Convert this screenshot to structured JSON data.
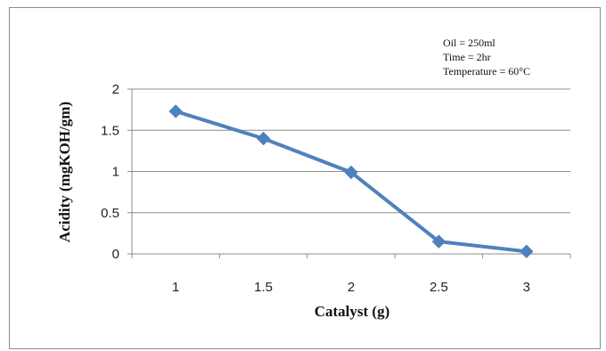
{
  "chart_data": {
    "type": "line",
    "title": "",
    "xlabel": "Catalyst (g)",
    "ylabel": "Acidity (mgKOH/gm)",
    "categories": [
      "1",
      "1.5",
      "2",
      "2.5",
      "3"
    ],
    "series": [
      {
        "values": [
          1.73,
          1.4,
          0.99,
          0.15,
          0.03
        ],
        "color": "#4f81bd",
        "marker": "diamond"
      }
    ],
    "ylim": [
      0,
      2
    ],
    "yticks": [
      "0",
      "0.5",
      "1",
      "1.5",
      "2"
    ],
    "grid": true,
    "annotations": [
      "Oil = 250ml",
      "Time = 2hr",
      "Temperature = 60°C"
    ]
  }
}
